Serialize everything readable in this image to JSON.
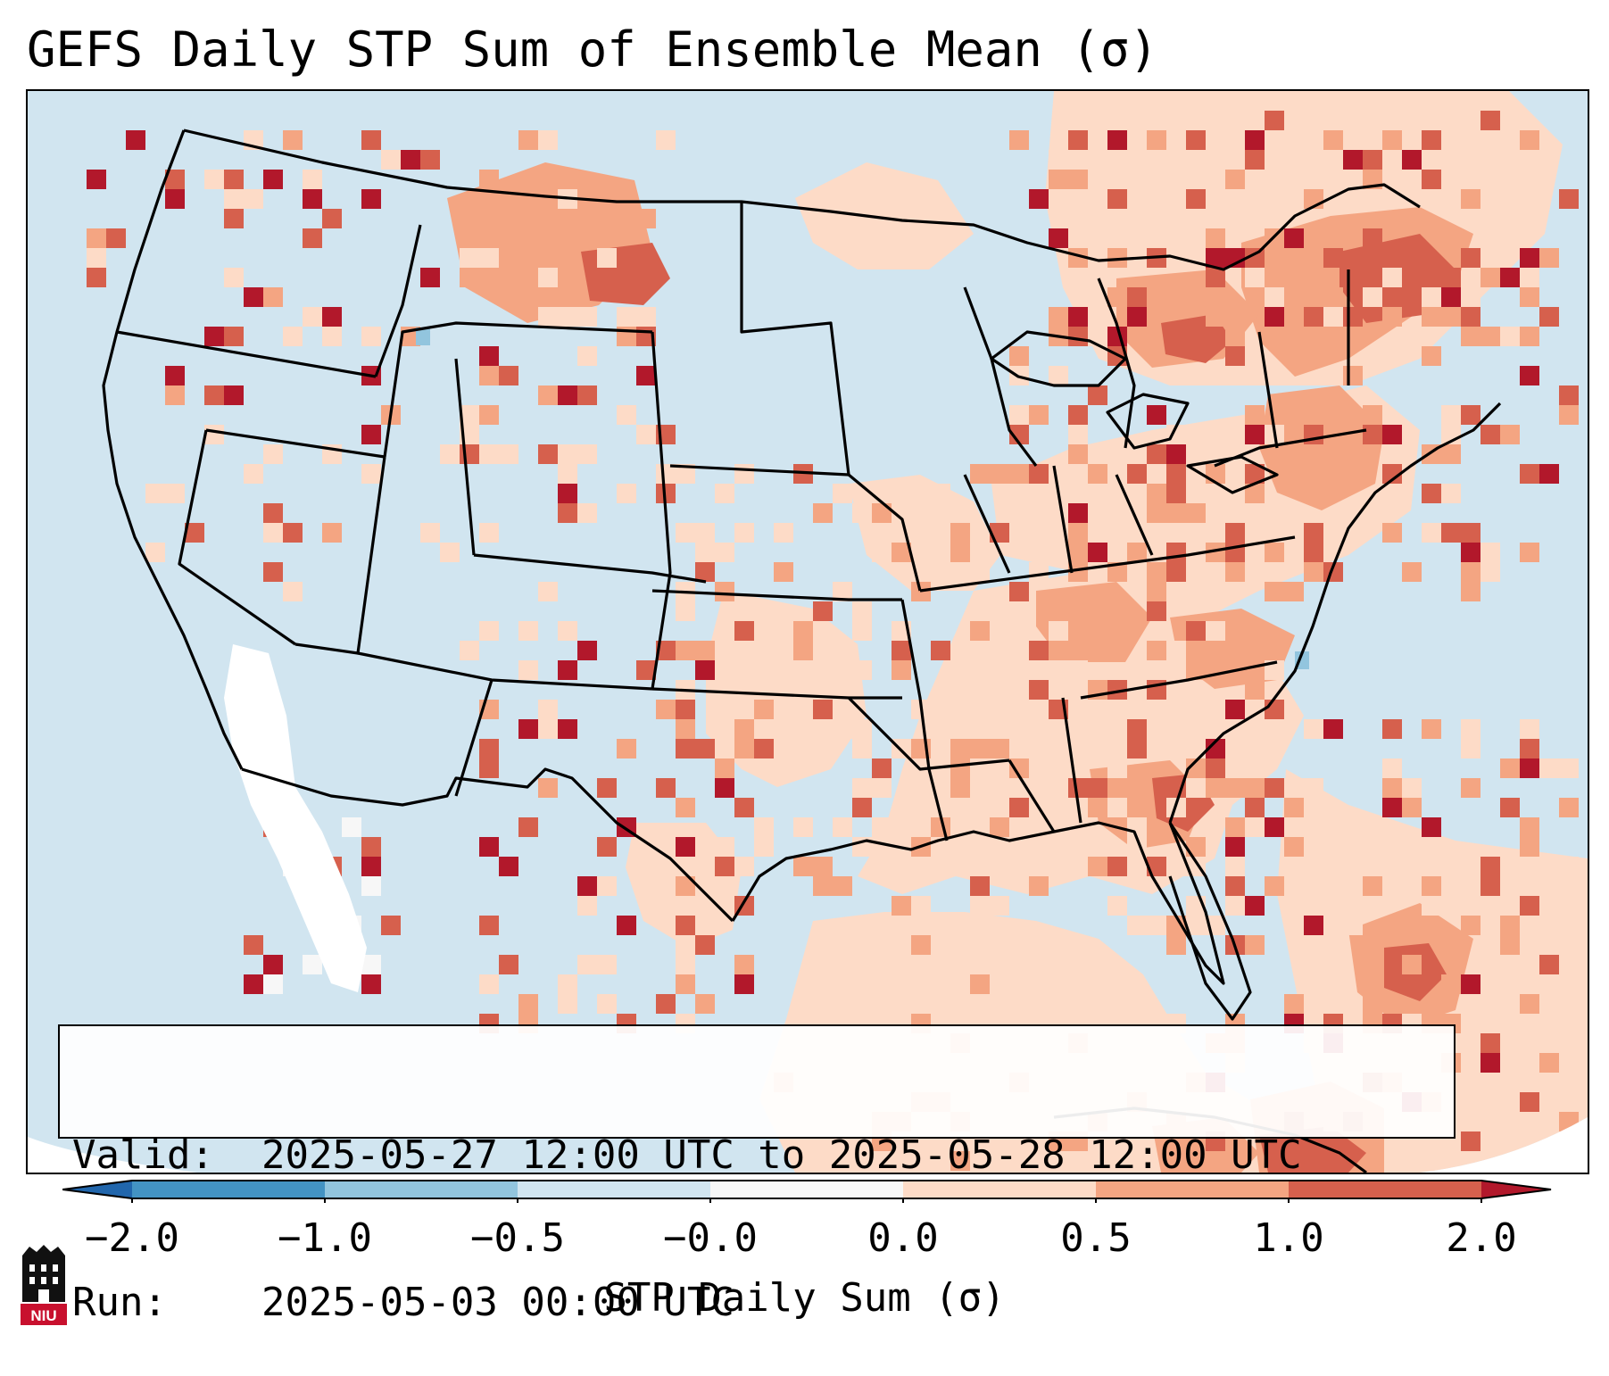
{
  "figure": {
    "title": "GEFS Daily STP Sum of Ensemble Mean (σ)"
  },
  "info_box": {
    "valid_key": "Valid:",
    "valid_value": "2025-05-27 12:00 UTC to 2025-05-28 12:00 UTC",
    "run_key": "Run:",
    "run_value": "2025-05-03 00:00 UTC"
  },
  "colorbar": {
    "label": "STP Daily Sum (σ)",
    "extend": "both",
    "ticks": [
      "−2.0",
      "−1.0",
      "−0.5",
      "−0.0",
      "0.0",
      "0.5",
      "1.0",
      "2.0"
    ],
    "bins": [
      {
        "range": "< -2.0",
        "color": "#2166ac"
      },
      {
        "range": "-2.0 to -1.0",
        "color": "#4393c3"
      },
      {
        "range": "-1.0 to -0.5",
        "color": "#92c5de"
      },
      {
        "range": "-0.5 to 0.0",
        "color": "#d1e5f0"
      },
      {
        "range": "0.0",
        "color": "#f7f7f7"
      },
      {
        "range": "0.0 to 0.5",
        "color": "#fddbc7"
      },
      {
        "range": "0.5 to 1.0",
        "color": "#f4a582"
      },
      {
        "range": "1.0 to 2.0",
        "color": "#d6604d"
      },
      {
        "range": "> 2.0",
        "color": "#b2182b"
      }
    ]
  },
  "map": {
    "domain": "Contiguous United States, southern Canada, northern Mexico, Gulf of Mexico and western Atlantic",
    "background_color": "#d1e5f0",
    "outside_domain_color": "#ffffff",
    "border_color": "#000000",
    "regions": [
      {
        "name": "Southeast US / Gulf Coast",
        "category": "0.0 to 0.5"
      },
      {
        "name": "Northeast US / Quebec",
        "category": "0.5 to 1.0"
      },
      {
        "name": "Alberta",
        "category": "1.0 to 2.0"
      },
      {
        "name": "Georgia / Alabama",
        "category": "1.0 to 2.0"
      },
      {
        "name": "Western Atlantic",
        "category": "1.0 to 2.0"
      },
      {
        "name": "Gulf of Mexico",
        "category": "0.0 to 0.5"
      }
    ]
  },
  "logo": {
    "text": "NIU"
  }
}
